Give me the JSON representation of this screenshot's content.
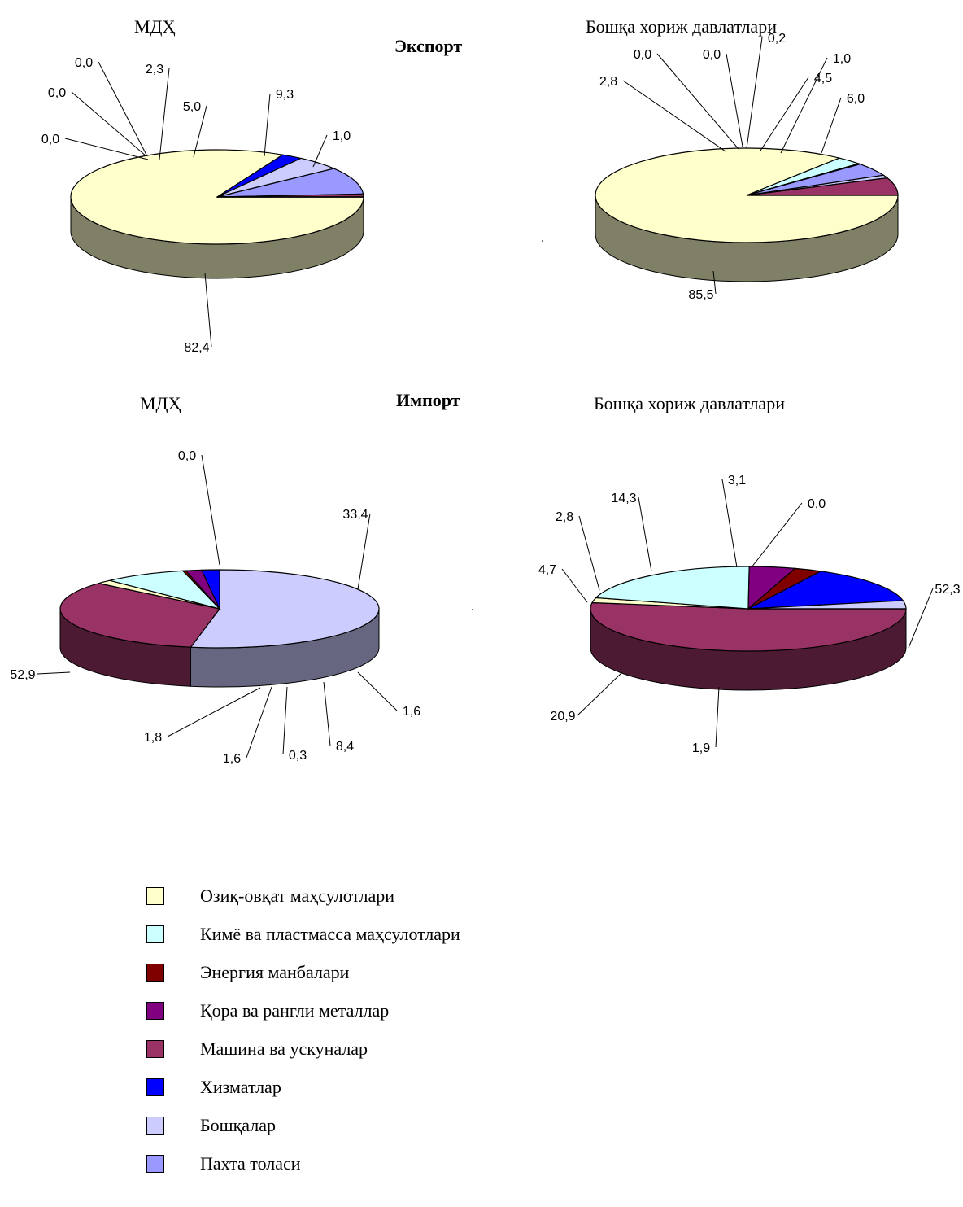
{
  "headings": {
    "export": "Экспорт",
    "import": "Импорт"
  },
  "legend": [
    {
      "name": "Озиқ-овқат маҳсулотлари",
      "color": "#FFFFCC"
    },
    {
      "name": "Кимё ва пластмасса маҳсулотлари",
      "color": "#CCFFFF"
    },
    {
      "name": "Энергия манбалари",
      "color": "#800000"
    },
    {
      "name": "Қора ва рангли металлар",
      "color": "#800080"
    },
    {
      "name": "Машина ва ускуналар",
      "color": "#993366"
    },
    {
      "name": "Хизматлар",
      "color": "#0000FF"
    },
    {
      "name": "Бошқалар",
      "color": "#CCCCFF"
    },
    {
      "name": "Пахта толаси",
      "color": "#9999FF"
    }
  ],
  "chart_data": [
    {
      "type": "pie",
      "title": "МДҲ",
      "group": "Экспорт",
      "slices": [
        {
          "category": "Озиқ-овқат маҳсулотлари",
          "value": 82.4,
          "label": "82,4"
        },
        {
          "category": "Хизматлар",
          "value": 2.3,
          "label": "2,3"
        },
        {
          "category": "Бошқалар",
          "value": 5.0,
          "label": "5,0"
        },
        {
          "category": "Пахта толаси",
          "value": 9.3,
          "label": "9,3"
        },
        {
          "category": "Машина ва ускуналар",
          "value": 1.0,
          "label": "1,0"
        },
        {
          "category": "Кимё ва пластмасса маҳсулотлари",
          "value": 0.0,
          "label": "0,0"
        },
        {
          "category": "Энергия манбалари",
          "value": 0.0,
          "label": "0,0"
        },
        {
          "category": "Қора ва рангли металлар",
          "value": 0.0,
          "label": "0,0"
        }
      ]
    },
    {
      "type": "pie",
      "title": "Бошқа хориж давлатлари",
      "group": "Экспорт",
      "slices": [
        {
          "category": "Озиқ-овқат маҳсулотлари",
          "value": 85.5,
          "label": "85,5"
        },
        {
          "category": "Кимё ва пластмасса маҳсулотлари",
          "value": 2.8,
          "label": "2,8"
        },
        {
          "category": "Энергия манбалари",
          "value": 0.0,
          "label": "0,0"
        },
        {
          "category": "Қора ва рангли металлар",
          "value": 0.0,
          "label": "0,0"
        },
        {
          "category": "Хизматлар",
          "value": 0.2,
          "label": "0,2"
        },
        {
          "category": "Пахта толаси",
          "value": 4.5,
          "label": "4,5"
        },
        {
          "category": "Бошқалар",
          "value": 1.0,
          "label": "1,0"
        },
        {
          "category": "Машина ва ускуналар",
          "value": 6.0,
          "label": "6,0"
        }
      ]
    },
    {
      "type": "pie",
      "title": "МДҲ",
      "group": "Импорт",
      "slices": [
        {
          "category": "Бошқалар",
          "value": 52.9,
          "label": "52,9"
        },
        {
          "category": "Пахта толаси",
          "value": 0.0,
          "label": "0,0"
        },
        {
          "category": "Машина ва ускуналар",
          "value": 33.4,
          "label": "33,4"
        },
        {
          "category": "Озиқ-овқат маҳсулотлари",
          "value": 1.6,
          "label": "1,6"
        },
        {
          "category": "Кимё ва пластмасса маҳсулотлари",
          "value": 8.4,
          "label": "8,4"
        },
        {
          "category": "Энергия манбалари",
          "value": 0.3,
          "label": "0,3"
        },
        {
          "category": "Қора ва рангли металлар",
          "value": 1.6,
          "label": "1,6"
        },
        {
          "category": "Хизматлар",
          "value": 1.8,
          "label": "1,8"
        }
      ]
    },
    {
      "type": "pie",
      "title": "Бошқа хориж давлатлари",
      "group": "Импорт",
      "slices": [
        {
          "category": "Машина ва ускуналар",
          "value": 52.3,
          "label": "52,3"
        },
        {
          "category": "Озиқ-овқат маҳсулотлари",
          "value": 1.9,
          "label": "1,9"
        },
        {
          "category": "Кимё ва пластмасса маҳсулотлари",
          "value": 20.9,
          "label": "20,9"
        },
        {
          "category": "Қора ва рангли металлар",
          "value": 4.7,
          "label": "4,7"
        },
        {
          "category": "Энергия манбалари",
          "value": 2.8,
          "label": "2,8"
        },
        {
          "category": "Хизматлар",
          "value": 14.3,
          "label": "14,3"
        },
        {
          "category": "Бошқалар",
          "value": 3.1,
          "label": "3,1"
        },
        {
          "category": "Пахта толаси",
          "value": 0.0,
          "label": "0,0"
        }
      ]
    }
  ]
}
